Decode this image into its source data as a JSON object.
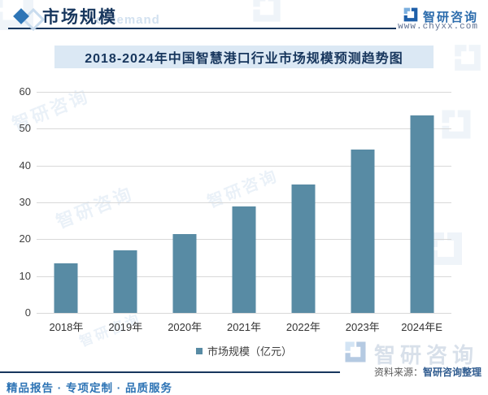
{
  "header": {
    "title": "市场规模",
    "ghost_text": "d demand",
    "brand_name": "智研咨询",
    "website": "www.chyxx.com"
  },
  "chart_title": "2018-2024年中国智慧港口行业市场规模预测趋势图",
  "chart_data": {
    "type": "bar",
    "title": "2018-2024年中国智慧港口行业市场规模预测趋势图",
    "categories": [
      "2018年",
      "2019年",
      "2020年",
      "2021年",
      "2022年",
      "2023年",
      "2024年E"
    ],
    "values": [
      13.4,
      16.9,
      21.3,
      29,
      34.8,
      44.3,
      53.5
    ],
    "legend": "市场规模（亿元）",
    "xlabel": "",
    "ylabel": "",
    "ylim": [
      0,
      60
    ],
    "yticks": [
      0,
      10,
      20,
      30,
      40,
      50,
      60
    ],
    "grid": true,
    "legend_position": "bottom",
    "bar_color": "#588ba4"
  },
  "footer": {
    "source_label": "资料来源：",
    "source_value": "智研咨询整理",
    "motto": "精品报告 · 专项定制 · 品质服务",
    "watermark_brand": "智研咨询"
  },
  "colors": {
    "accent": "#2e75b6",
    "navy": "#17365d",
    "bar": "#588ba4",
    "title_band_bg": "#dbe8f4",
    "grid": "#d9d9d9",
    "axis_text": "#404040"
  }
}
